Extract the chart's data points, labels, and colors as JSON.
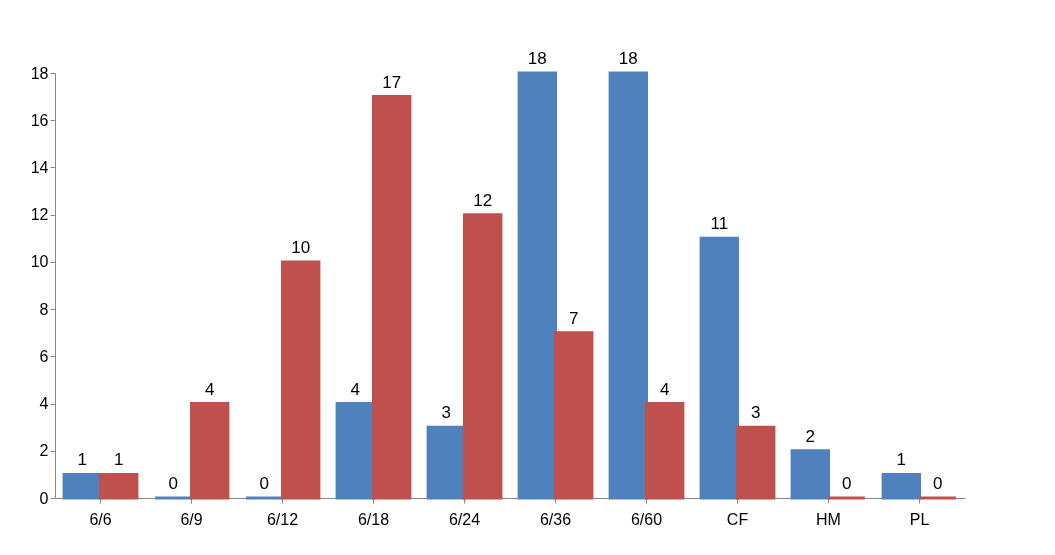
{
  "chart_data": {
    "type": "bar",
    "categories": [
      "6/6",
      "6/9",
      "6/12",
      "6/18",
      "6/24",
      "6/36",
      "6/60",
      "CF",
      "HM",
      "PL"
    ],
    "series": [
      {
        "color": "#4f81bd",
        "values": [
          1,
          0,
          0,
          4,
          3,
          18,
          18,
          11,
          2,
          1
        ]
      },
      {
        "color": "#c0504d",
        "values": [
          1,
          4,
          10,
          17,
          12,
          7,
          4,
          3,
          0,
          0
        ]
      }
    ],
    "ylim": [
      0,
      18
    ],
    "yticks": [
      0,
      2,
      4,
      6,
      8,
      10,
      12,
      14,
      16,
      18
    ],
    "grid": false,
    "data_labels": true
  }
}
